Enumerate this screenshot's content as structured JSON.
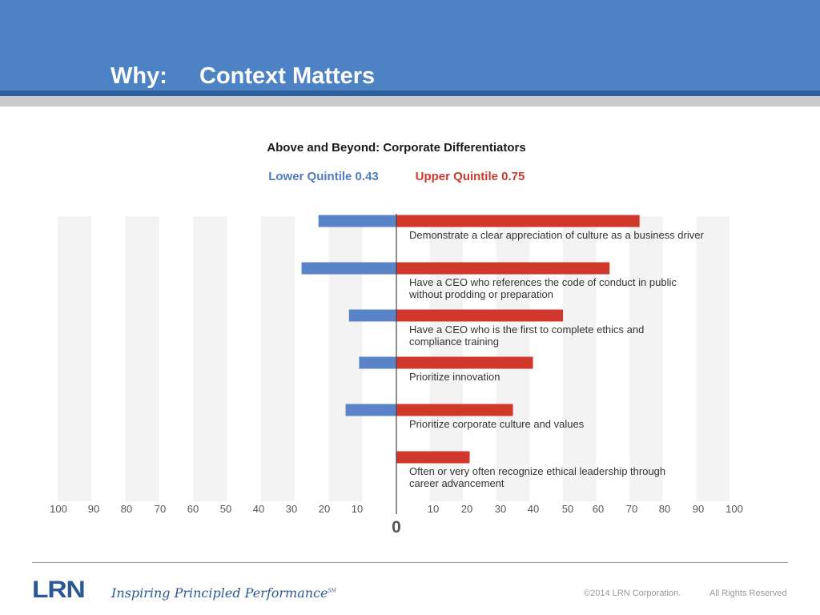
{
  "slide": {
    "title_prefix": "Why:",
    "title_main": "Context Matters"
  },
  "chart_data": {
    "type": "bar",
    "title": "Above and Beyond: Corporate Differentiators",
    "categories": [
      [
        "Demonstrate a clear appreciation of culture as a business driver"
      ],
      [
        "Have a CEO who references the code of conduct in public",
        "without prodding or preparation"
      ],
      [
        "Have a CEO who is the first to complete ethics and",
        "compliance training"
      ],
      [
        "Prioritize innovation"
      ],
      [
        "Prioritize corporate culture and values"
      ],
      [
        "Often or very often recognize ethical leadership through",
        "career advancement"
      ]
    ],
    "series": [
      {
        "name": "Lower Quintile 0.43",
        "color": "#5b83c7",
        "direction": "left",
        "values": [
          23,
          28,
          14,
          11,
          15,
          0
        ]
      },
      {
        "name": "Upper Quintile 0.75",
        "color": "#d0382c",
        "direction": "right",
        "values": [
          73,
          64,
          50,
          41,
          35,
          22
        ]
      }
    ],
    "x_ticks_left": [
      "100",
      "90",
      "80",
      "70",
      "60",
      "50",
      "40",
      "30",
      "20",
      "10"
    ],
    "x_ticks_right": [
      "10",
      "20",
      "30",
      "40",
      "50",
      "60",
      "70",
      "80",
      "90",
      "100"
    ],
    "zero_label": "0",
    "xlim": [
      -100,
      100
    ],
    "orientation": "horizontal-diverging",
    "grid": "alternating-bands"
  },
  "footer": {
    "logo": "LRN",
    "tagline": "Inspiring Principled Performance",
    "tagline_mark": "SM",
    "copyright": "©2014 LRN Corporation.",
    "rights": "All Rights Reserved"
  }
}
